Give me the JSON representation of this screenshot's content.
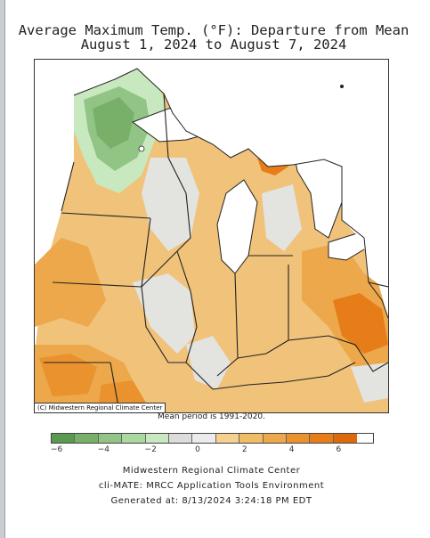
{
  "title": {
    "line1": "Average Maximum Temp. (°F): Departure from Mean",
    "line2": "August 1, 2024 to August 7, 2024"
  },
  "map": {
    "credit": "(C) Midwestern Regional Climate Center",
    "mean_period": "Mean period is 1991-2020."
  },
  "legend": {
    "colors": [
      "#5a9a50",
      "#78b06a",
      "#92c585",
      "#aad89e",
      "#c8e9bf",
      "#dcdcdc",
      "#ebebeb",
      "#f5d08e",
      "#f0bd65",
      "#eca84a",
      "#e9922e",
      "#e67d18",
      "#dd6a0a"
    ],
    "ticks": [
      "−6",
      "−4",
      "−2",
      "0",
      "2",
      "4",
      "6"
    ]
  },
  "footer": {
    "line1": "Midwestern Regional Climate Center",
    "line2": "cli-MATE: MRCC Application Tools Environment",
    "line3": "Generated at: 8/13/2024 3:24:18 PM EDT"
  }
}
